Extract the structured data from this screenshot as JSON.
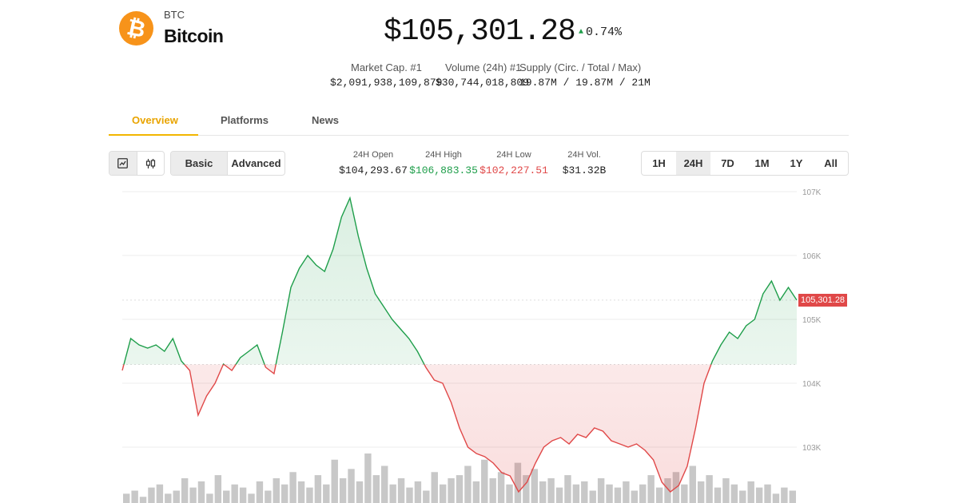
{
  "coin": {
    "symbol": "BTC",
    "name": "Bitcoin",
    "logo_glyph": "₿",
    "logo_color": "#f7931a"
  },
  "price": "$105,301.28",
  "change": {
    "direction_icon": "triangle-up-icon",
    "value": "0.74%"
  },
  "stats": [
    {
      "label": "Market Cap. #1",
      "value": "$2,091,938,109,879"
    },
    {
      "label": "Volume (24h) #1",
      "value": "$30,744,018,809"
    },
    {
      "label": "Supply (Circ. / Total / Max)",
      "value": "19.87M / 19.87M / 21M"
    }
  ],
  "tabs": [
    "Overview",
    "Platforms",
    "News"
  ],
  "chart_type_icons": [
    "line-chart-icon",
    "candlestick-icon"
  ],
  "modes": [
    "Basic",
    "Advanced"
  ],
  "ohlc": [
    {
      "label": "24H Open",
      "value": "$104,293.67",
      "color": "#222222"
    },
    {
      "label": "24H High",
      "value": "$106,883.35",
      "color": "#1e9e4a"
    },
    {
      "label": "24H Low",
      "value": "$102,227.51",
      "color": "#e04848"
    },
    {
      "label": "24H Vol.",
      "value": "$31.32B",
      "color": "#222222"
    }
  ],
  "ranges": [
    "1H",
    "24H",
    "7D",
    "1M",
    "1Y",
    "All"
  ],
  "active_range": "24H",
  "colors": {
    "up": "#1e9e4a",
    "down": "#e04848",
    "accent": "#f2b600"
  },
  "chart_data": {
    "type": "line",
    "title": "",
    "series": [
      {
        "values": [
          104200,
          104700,
          104600,
          104550,
          104600,
          104500,
          104700,
          104350,
          104200,
          103500,
          103800,
          104000,
          104300,
          104200,
          104400,
          104500,
          104600,
          104250,
          104150,
          104800,
          105500,
          105800,
          106000,
          105850,
          105750,
          106100,
          106600,
          106900,
          106300,
          105800,
          105400,
          105200,
          105000,
          104850,
          104700,
          104500,
          104250,
          104050,
          104000,
          103700,
          103300,
          103000,
          102900,
          102850,
          102750,
          102600,
          102550,
          102300,
          102450,
          102750,
          103000,
          103100,
          103150,
          103050,
          103200,
          103150,
          103300,
          103250,
          103100,
          103050,
          103000,
          103050,
          102950,
          102800,
          102450,
          102300,
          102400,
          102700,
          103300,
          104000,
          104350,
          104600,
          104800,
          104700,
          104900,
          105000,
          105400,
          105600,
          105300,
          105500,
          105301.28
        ]
      }
    ],
    "reference_value": 104293.67,
    "ylim": [
      102300,
      107050
    ],
    "y_ticks": [
      {
        "value": 107000,
        "label": "107K"
      },
      {
        "value": 106000,
        "label": "106K"
      },
      {
        "value": 105000,
        "label": "105K"
      },
      {
        "value": 104000,
        "label": "104K"
      },
      {
        "value": 103000,
        "label": "103K"
      }
    ],
    "last_price_label": "105,301.28",
    "volume": [
      3,
      4,
      2,
      5,
      6,
      3,
      4,
      8,
      5,
      7,
      3,
      9,
      4,
      6,
      5,
      3,
      7,
      4,
      8,
      6,
      10,
      7,
      5,
      9,
      6,
      14,
      8,
      11,
      7,
      16,
      9,
      12,
      6,
      8,
      5,
      7,
      4,
      10,
      6,
      8,
      9,
      12,
      7,
      14,
      8,
      10,
      6,
      13,
      9,
      11,
      7,
      8,
      5,
      9,
      6,
      7,
      4,
      8,
      6,
      5,
      7,
      4,
      6,
      9,
      5,
      8,
      10,
      6,
      12,
      7,
      9,
      5,
      8,
      6,
      4,
      7,
      5,
      6,
      3,
      5,
      4
    ],
    "grid": true
  }
}
